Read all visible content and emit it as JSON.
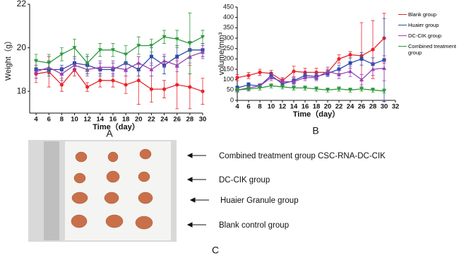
{
  "chart_data": [
    {
      "type": "line",
      "x_label": "Time（day）",
      "y_label": "Weight（g）",
      "x": [
        4,
        6,
        8,
        10,
        12,
        14,
        16,
        18,
        20,
        22,
        24,
        26,
        28,
        30
      ],
      "xlim": [
        3,
        30
      ],
      "xticks": [
        4,
        6,
        8,
        10,
        12,
        14,
        16,
        18,
        20,
        22,
        24,
        26,
        28,
        30
      ],
      "ylim": [
        17,
        22
      ],
      "yticks": [
        18,
        20,
        22
      ],
      "grid": false,
      "series": [
        {
          "color": "#e8262b",
          "marker": "circle",
          "values": [
            18.8,
            18.9,
            18.3,
            19.0,
            18.2,
            18.5,
            18.5,
            18.3,
            18.5,
            18.1,
            18.1,
            18.3,
            18.2,
            18.0
          ],
          "errors": [
            0.4,
            0.7,
            0.3,
            0.3,
            0.2,
            0.3,
            0.3,
            0.4,
            1.1,
            0.6,
            0.4,
            1.1,
            1.0,
            0.6
          ]
        },
        {
          "color": "#2a4aa8",
          "marker": "square",
          "values": [
            19.0,
            19.0,
            19.0,
            19.3,
            19.2,
            19.0,
            19.0,
            19.3,
            19.0,
            19.6,
            19.2,
            19.6,
            19.9,
            19.9
          ],
          "errors": [
            0.4,
            0.3,
            0.2,
            0.3,
            0.4,
            0.3,
            0.3,
            0.4,
            0.3,
            0.4,
            0.4,
            0.5,
            0.4,
            0.3
          ]
        },
        {
          "color": "#9b3fb5",
          "marker": "triangle",
          "values": [
            18.9,
            19.1,
            18.8,
            19.2,
            19.0,
            19.1,
            19.1,
            19.0,
            19.3,
            19.0,
            19.4,
            19.2,
            19.6,
            19.8
          ],
          "errors": [
            0.3,
            0.3,
            0.3,
            0.3,
            0.3,
            0.3,
            0.3,
            0.3,
            0.3,
            0.3,
            0.3,
            0.3,
            0.3,
            0.3
          ]
        },
        {
          "color": "#2a9a3a",
          "marker": "triangle-down",
          "values": [
            19.4,
            19.3,
            19.7,
            20.0,
            19.3,
            19.9,
            19.9,
            19.7,
            20.1,
            20.1,
            20.5,
            20.4,
            20.2,
            20.5
          ],
          "errors": [
            0.3,
            0.4,
            0.3,
            0.4,
            0.4,
            0.3,
            0.3,
            0.4,
            0.4,
            0.3,
            0.3,
            0.4,
            1.4,
            0.3
          ]
        }
      ]
    },
    {
      "type": "line",
      "x_label": "Time（day）",
      "y_label": "volume/mm³",
      "x": [
        4,
        6,
        8,
        10,
        12,
        14,
        16,
        18,
        20,
        22,
        24,
        26,
        28,
        30
      ],
      "xlim": [
        4,
        32
      ],
      "xticks": [
        4,
        6,
        8,
        10,
        12,
        14,
        16,
        18,
        20,
        22,
        24,
        26,
        28,
        30,
        32
      ],
      "ylim": [
        0,
        450
      ],
      "yticks": [
        0,
        50,
        100,
        150,
        200,
        250,
        300,
        350,
        400,
        450
      ],
      "grid": false,
      "legend": "right",
      "series": [
        {
          "name": "Blank group",
          "color": "#e8262b",
          "marker": "circle",
          "values": [
            110,
            120,
            135,
            130,
            95,
            140,
            135,
            135,
            135,
            200,
            220,
            215,
            245,
            300
          ],
          "errors": [
            15,
            15,
            15,
            15,
            15,
            25,
            20,
            20,
            15,
            20,
            15,
            160,
            140,
            120
          ]
        },
        {
          "name": "Huaier group",
          "color": "#2a4aa8",
          "marker": "square",
          "values": [
            60,
            75,
            70,
            120,
            80,
            95,
            120,
            115,
            130,
            150,
            180,
            200,
            175,
            195
          ],
          "errors": [
            10,
            10,
            10,
            15,
            10,
            15,
            15,
            15,
            15,
            20,
            25,
            30,
            30,
            200
          ]
        },
        {
          "name": "DC-CIK group",
          "color": "#9b3fb5",
          "marker": "triangle",
          "values": [
            50,
            60,
            70,
            110,
            90,
            90,
            110,
            110,
            140,
            125,
            140,
            100,
            150,
            155
          ],
          "errors": [
            10,
            10,
            10,
            15,
            15,
            15,
            15,
            15,
            20,
            20,
            25,
            25,
            30,
            60
          ]
        },
        {
          "name": "Combined treatment group",
          "color": "#2a9a3a",
          "marker": "triangle-down",
          "values": [
            50,
            55,
            60,
            70,
            65,
            60,
            60,
            55,
            50,
            55,
            50,
            55,
            50,
            45
          ],
          "errors": [
            10,
            10,
            10,
            10,
            10,
            10,
            10,
            10,
            10,
            10,
            10,
            10,
            10,
            10
          ]
        }
      ]
    }
  ],
  "figure": {
    "panel_labels": [
      "A",
      "B",
      "C"
    ],
    "photo_labels": [
      "Combined treatment group CSC-RNA-DC-CIK",
      "DC-CIK group",
      "Huaier Granule group",
      "Blank control group"
    ]
  }
}
